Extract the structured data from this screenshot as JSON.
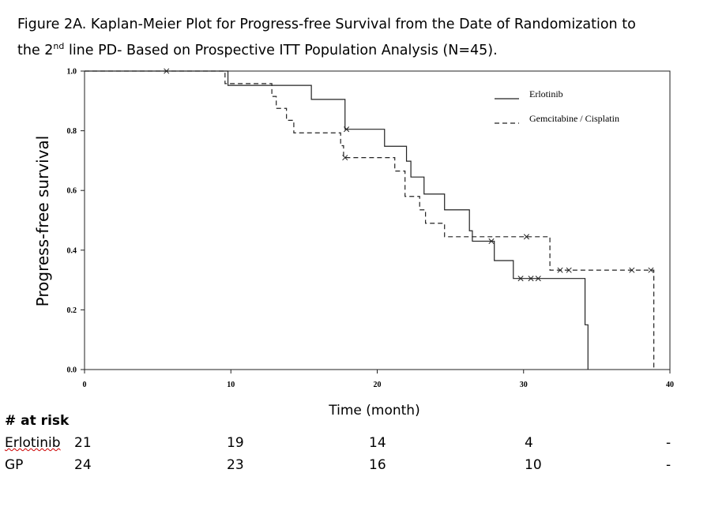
{
  "figure": {
    "title_line1": "Figure 2A. Kaplan-Meier Plot for Progress-free Survival from the Date of Randomization to",
    "title_line2_a": "the 2",
    "title_line2_sup": "nd",
    "title_line2_b": " line PD- Based on Prospective ITT Population Analysis (N=45)."
  },
  "chart_data": {
    "type": "line",
    "subtype": "kaplan-meier step",
    "xlabel": "Time (month)",
    "ylabel": "Progress-free survival",
    "xlim": [
      0,
      40
    ],
    "ylim": [
      0,
      1.0
    ],
    "xticks": [
      "0",
      "10",
      "20",
      "30",
      "40"
    ],
    "yticks": [
      "0.0",
      "0.2",
      "0.4",
      "0.6",
      "0.8",
      "1.0"
    ],
    "legend_position": "top-right",
    "series": [
      {
        "name": "Erlotinib",
        "style": "solid",
        "steps": [
          [
            0,
            1.0
          ],
          [
            9.8,
            0.952
          ],
          [
            15.5,
            0.905
          ],
          [
            17.8,
            0.805
          ],
          [
            20.5,
            0.748
          ],
          [
            22.0,
            0.698
          ],
          [
            22.3,
            0.645
          ],
          [
            23.2,
            0.588
          ],
          [
            24.6,
            0.535
          ],
          [
            26.3,
            0.465
          ],
          [
            26.5,
            0.43
          ],
          [
            28.0,
            0.365
          ],
          [
            29.3,
            0.305
          ],
          [
            34.2,
            0.15
          ],
          [
            34.4,
            0.0
          ]
        ],
        "end_x": 34.4,
        "censored": [
          [
            5.6,
            1.0
          ],
          [
            17.9,
            0.805
          ],
          [
            27.8,
            0.43
          ],
          [
            29.8,
            0.305
          ],
          [
            30.5,
            0.305
          ],
          [
            31.0,
            0.305
          ]
        ]
      },
      {
        "name": "Gemcitabine / Cisplatin",
        "style": "dashed",
        "steps": [
          [
            0,
            1.0
          ],
          [
            9.6,
            0.958
          ],
          [
            12.8,
            0.915
          ],
          [
            13.1,
            0.875
          ],
          [
            13.8,
            0.835
          ],
          [
            14.3,
            0.793
          ],
          [
            17.5,
            0.75
          ],
          [
            17.7,
            0.71
          ],
          [
            21.2,
            0.665
          ],
          [
            21.9,
            0.58
          ],
          [
            22.9,
            0.535
          ],
          [
            23.3,
            0.49
          ],
          [
            24.6,
            0.445
          ],
          [
            31.8,
            0.333
          ],
          [
            38.9,
            0.0
          ]
        ],
        "end_x": 38.9,
        "censored": [
          [
            17.8,
            0.71
          ],
          [
            30.2,
            0.445
          ],
          [
            32.5,
            0.333
          ],
          [
            33.1,
            0.333
          ],
          [
            37.4,
            0.333
          ],
          [
            38.7,
            0.333
          ]
        ]
      }
    ]
  },
  "at_risk": {
    "header": "# at risk",
    "rows": [
      {
        "label": "Erlotinib",
        "values": [
          "21",
          "19",
          "14",
          "4",
          "-"
        ]
      },
      {
        "label": "GP",
        "values": [
          "24",
          "23",
          "16",
          "10",
          "-"
        ]
      }
    ]
  }
}
